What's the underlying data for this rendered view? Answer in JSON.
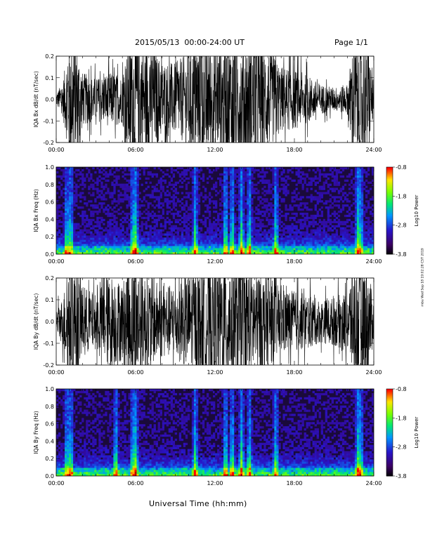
{
  "header": {
    "date_range": "2015/05/13  00:00-24:00 UT",
    "page": "Page 1/1"
  },
  "x_axis_title": "Universal Time (hh:mm)",
  "time_ticks": [
    "00:00",
    "06:00",
    "12:00",
    "18:00",
    "24:00"
  ],
  "stamp_text": "rnbu Wed Sep 18 19:02:28 CST 2019",
  "colorbar": {
    "title": "Log10 Power",
    "ticks": [
      "-0.8",
      "-1.8",
      "-2.8",
      "-3.8"
    ]
  },
  "colors": {
    "trace": "#000000",
    "spectrogram_background": "#1a0a3a"
  },
  "chart_data": [
    {
      "type": "line",
      "ylabel": "IQA Bx dB/dt (nT/sec)",
      "xlabel": "",
      "xlim_hours": [
        0,
        24
      ],
      "ylim": [
        -0.2,
        0.2
      ],
      "yticks": [
        "-0.2",
        "-0.1",
        "0.0",
        "0.1",
        "0.2"
      ],
      "envelope_hours": [
        0,
        0.5,
        1.0,
        1.5,
        2.0,
        3.0,
        4.0,
        5.0,
        5.5,
        6.0,
        7.0,
        8.0,
        9.0,
        10.0,
        11.0,
        12.0,
        13.0,
        14.0,
        15.0,
        16.0,
        17.0,
        18.0,
        19.0,
        20.0,
        21.0,
        22.0,
        22.5,
        23.0,
        23.5,
        24.0
      ],
      "envelope_amplitude": [
        0.02,
        0.06,
        0.2,
        0.2,
        0.09,
        0.07,
        0.09,
        0.08,
        0.2,
        0.2,
        0.18,
        0.13,
        0.12,
        0.16,
        0.2,
        0.17,
        0.2,
        0.2,
        0.2,
        0.17,
        0.11,
        0.1,
        0.08,
        0.05,
        0.04,
        0.05,
        0.2,
        0.2,
        0.2,
        0.05
      ]
    },
    {
      "type": "heatmap",
      "ylabel": "IQA Bx Freq (Hz)",
      "xlabel": "",
      "xlim_hours": [
        0,
        24
      ],
      "ylim": [
        0.0,
        1.0
      ],
      "yticks": [
        "0.0",
        "0.2",
        "0.4",
        "0.6",
        "0.8",
        "1.0"
      ],
      "color_scale": "Log10 Power",
      "zlim": [
        -3.8,
        -0.8
      ],
      "bright_hours": [
        0.8,
        1.1,
        5.8,
        6.0,
        10.5,
        12.8,
        13.3,
        14.0,
        14.6,
        16.6,
        22.8,
        23.0
      ]
    },
    {
      "type": "line",
      "ylabel": "IQA By dB/dt (nT/sec)",
      "xlabel": "",
      "xlim_hours": [
        0,
        24
      ],
      "ylim": [
        -0.2,
        0.2
      ],
      "yticks": [
        "-0.2",
        "-0.1",
        "0.0",
        "0.1",
        "0.2"
      ],
      "envelope_hours": [
        0,
        0.5,
        1.0,
        1.5,
        2.0,
        3.0,
        4.0,
        5.0,
        5.5,
        6.0,
        7.0,
        8.0,
        9.0,
        10.0,
        11.0,
        12.0,
        13.0,
        14.0,
        15.0,
        16.0,
        17.0,
        18.0,
        19.0,
        20.0,
        21.0,
        22.0,
        22.5,
        23.0,
        23.5,
        24.0
      ],
      "envelope_amplitude": [
        0.04,
        0.08,
        0.2,
        0.2,
        0.12,
        0.09,
        0.16,
        0.13,
        0.2,
        0.2,
        0.15,
        0.12,
        0.12,
        0.16,
        0.18,
        0.2,
        0.2,
        0.2,
        0.18,
        0.15,
        0.11,
        0.1,
        0.09,
        0.07,
        0.08,
        0.1,
        0.2,
        0.2,
        0.2,
        0.06
      ]
    },
    {
      "type": "heatmap",
      "ylabel": "IQA By Freq (Hz)",
      "xlabel": "",
      "xlim_hours": [
        0,
        24
      ],
      "ylim": [
        0.0,
        1.0
      ],
      "yticks": [
        "0.0",
        "0.2",
        "0.4",
        "0.6",
        "0.8",
        "1.0"
      ],
      "color_scale": "Log10 Power",
      "zlim": [
        -3.8,
        -0.8
      ],
      "bright_hours": [
        0.8,
        1.1,
        4.5,
        5.8,
        6.0,
        10.5,
        12.8,
        13.3,
        14.0,
        14.6,
        16.6,
        22.8,
        23.0
      ]
    }
  ]
}
